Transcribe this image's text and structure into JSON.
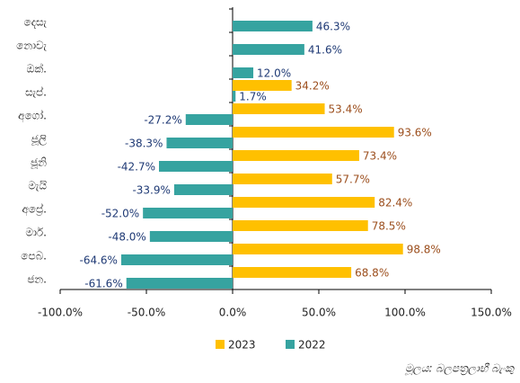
{
  "chart_data": {
    "type": "hbar",
    "categories": [
      "දෙසැ",
      "නොවැ",
      "ඔක්.",
      "සැප්.",
      "අගෝ.",
      "ජූලි",
      "ජූනි",
      "මැයි",
      "අප්‍රේ.",
      "මාර්.",
      "පෙබ.",
      "ජන."
    ],
    "series": [
      {
        "name": "2023",
        "color": "#FFC000",
        "label_color": "#9C4F1E",
        "values": [
          null,
          null,
          null,
          34.2,
          53.4,
          93.6,
          73.4,
          57.7,
          82.4,
          78.5,
          98.8,
          68.8
        ],
        "value_labels": [
          null,
          null,
          null,
          "34.2%",
          "53.4%",
          "93.6%",
          "73.4%",
          "57.7%",
          "82.4%",
          "78.5%",
          "98.8%",
          "68.8%"
        ]
      },
      {
        "name": "2022",
        "color": "#36A3A0",
        "label_color": "#1F3A75",
        "values": [
          46.3,
          41.6,
          12.0,
          1.7,
          -27.2,
          -38.3,
          -42.7,
          -33.9,
          -52.0,
          -48.0,
          -64.6,
          -61.6
        ],
        "value_labels": [
          "46.3%",
          "41.6%",
          "12.0%",
          "1.7%",
          "-27.2%",
          "-38.3%",
          "-42.7%",
          "-33.9%",
          "-52.0%",
          "-48.0%",
          "-64.6%",
          "-61.6%"
        ]
      }
    ],
    "xlim": [
      -100,
      150
    ],
    "xticks": [
      {
        "value": -100,
        "label": "-100.0%"
      },
      {
        "value": -50,
        "label": "-50.0%"
      },
      {
        "value": 0,
        "label": "0.0%"
      },
      {
        "value": 50,
        "label": "50.0%"
      },
      {
        "value": 100,
        "label": "100.0%"
      },
      {
        "value": 150,
        "label": "150.0%"
      }
    ],
    "legend": "bottom",
    "source": "මූලය: බලපත්‍රලාභී බැංකු"
  }
}
